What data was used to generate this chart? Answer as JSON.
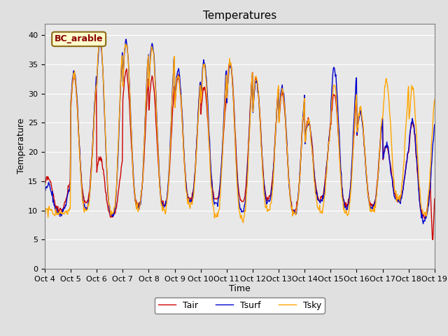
{
  "title": "Temperatures",
  "xlabel": "Time",
  "ylabel": "Temperature",
  "legend_label": "BC_arable",
  "series_labels": [
    "Tair",
    "Tsurf",
    "Tsky"
  ],
  "series_colors": [
    "#cc0000",
    "#0000cc",
    "#ffa500"
  ],
  "ylim": [
    0,
    42
  ],
  "yticks": [
    0,
    5,
    10,
    15,
    20,
    25,
    30,
    35,
    40
  ],
  "xtick_labels": [
    "Oct 4",
    "Oct 5",
    "Oct 6",
    "Oct 7",
    "Oct 8",
    "Oct 9",
    "Oct 10",
    "Oct 11",
    "Oct 12",
    "Oct 13",
    "Oct 14",
    "Oct 15",
    "Oct 16",
    "Oct 17",
    "Oct 18",
    "Oct 19"
  ],
  "bg_color": "#e8e8e8",
  "fig_color": "#e0e0e0",
  "legend_box_color": "#ffffcc",
  "legend_text_color": "#8b0000",
  "linewidth": 1.0,
  "title_fontsize": 11,
  "axis_label_fontsize": 9,
  "tick_fontsize": 8,
  "legend_fontsize": 9
}
